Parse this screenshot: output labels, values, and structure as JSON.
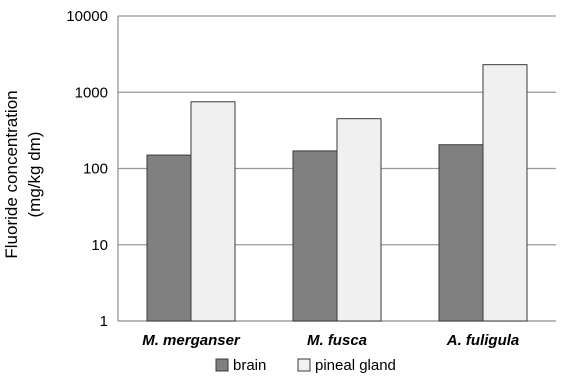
{
  "chart_data": {
    "type": "bar",
    "categories": [
      "M. merganser",
      "M. fusca",
      "A. fuligula"
    ],
    "series": [
      {
        "name": "brain",
        "values": [
          150,
          170,
          205
        ],
        "color": "#808080"
      },
      {
        "name": "pineal gland",
        "values": [
          750,
          450,
          2300
        ],
        "color": "#f0f0f0"
      }
    ],
    "ylabel_lines": [
      "Fluoride concentration",
      "(mg/kg dm)"
    ],
    "yscale": "log",
    "ylim": [
      1,
      10000
    ],
    "yticks": [
      "1",
      "10",
      "100",
      "1000",
      "10000"
    ],
    "grid": true,
    "legend_position": "bottom"
  }
}
